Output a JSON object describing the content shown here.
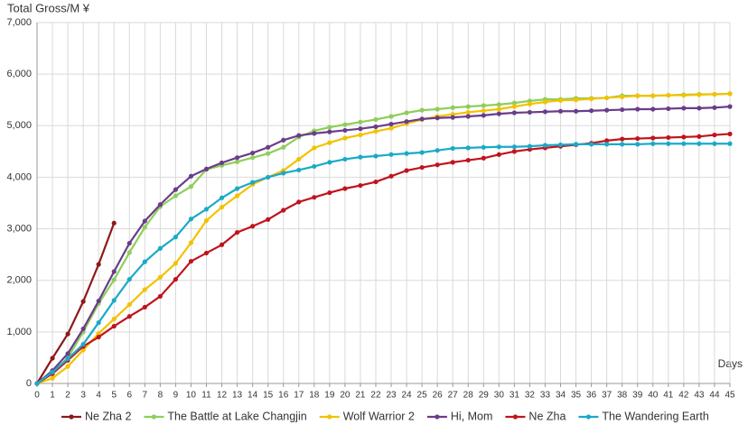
{
  "chart_data": {
    "type": "line",
    "y_label": "Total Gross/M ¥",
    "x_label": "Days",
    "x": [
      0,
      1,
      2,
      3,
      4,
      5,
      6,
      7,
      8,
      9,
      10,
      11,
      12,
      13,
      14,
      15,
      16,
      17,
      18,
      19,
      20,
      21,
      22,
      23,
      24,
      25,
      26,
      27,
      28,
      29,
      30,
      31,
      32,
      33,
      34,
      35,
      36,
      37,
      38,
      39,
      40,
      41,
      42,
      43,
      44,
      45
    ],
    "xlim": [
      0,
      45
    ],
    "xticks": [
      0,
      1,
      2,
      3,
      4,
      5,
      6,
      7,
      8,
      9,
      10,
      11,
      12,
      13,
      14,
      15,
      16,
      17,
      18,
      19,
      20,
      21,
      22,
      23,
      24,
      25,
      26,
      27,
      28,
      29,
      30,
      31,
      32,
      33,
      34,
      35,
      36,
      37,
      38,
      39,
      40,
      41,
      42,
      43,
      44,
      45
    ],
    "ylim": [
      0,
      7000
    ],
    "yticks": [
      0,
      {
        "value": 1000,
        "label": "1,000"
      },
      {
        "value": 2000,
        "label": "2,000"
      },
      {
        "value": 3000,
        "label": "3,000"
      },
      {
        "value": 4000,
        "label": "4,000"
      },
      {
        "value": 5000,
        "label": "5,000"
      },
      {
        "value": 6000,
        "label": "6,000"
      },
      {
        "value": 7000,
        "label": "7,000"
      }
    ],
    "grid": true,
    "legend": "bottom",
    "series": [
      {
        "name": "Ne Zha 2",
        "color": "#8b1a1a",
        "values": [
          0,
          490,
          960,
          1590,
          2310,
          3110,
          null,
          null,
          null,
          null,
          null,
          null,
          null,
          null,
          null,
          null,
          null,
          null,
          null,
          null,
          null,
          null,
          null,
          null,
          null,
          null,
          null,
          null,
          null,
          null,
          null,
          null,
          null,
          null,
          null,
          null,
          null,
          null,
          null,
          null,
          null,
          null,
          null,
          null,
          null,
          null
        ]
      },
      {
        "name": "The Battle at Lake Changjin",
        "color": "#8fce5a",
        "values": [
          0,
          200,
          500,
          1000,
          1550,
          2010,
          2540,
          3030,
          3430,
          3640,
          3820,
          4150,
          4230,
          4300,
          4380,
          4460,
          4580,
          4780,
          4900,
          4970,
          5020,
          5070,
          5120,
          5180,
          5250,
          5300,
          5320,
          5350,
          5370,
          5390,
          5410,
          5440,
          5480,
          5510,
          5510,
          5530,
          5530,
          5540,
          5580,
          5580,
          5580,
          5590,
          5600,
          5610,
          5610,
          5620
        ]
      },
      {
        "name": "Wolf Warrior 2",
        "color": "#f2c200",
        "values": [
          0,
          100,
          330,
          650,
          970,
          1250,
          1530,
          1820,
          2060,
          2330,
          2730,
          3160,
          3420,
          3640,
          3860,
          4000,
          4130,
          4350,
          4570,
          4670,
          4760,
          4820,
          4890,
          4950,
          5040,
          5120,
          5180,
          5220,
          5260,
          5290,
          5320,
          5370,
          5420,
          5460,
          5490,
          5500,
          5520,
          5540,
          5560,
          5580,
          5580,
          5590,
          5590,
          5600,
          5610,
          5620
        ]
      },
      {
        "name": "Hi, Mom",
        "color": "#6a3d8a",
        "values": [
          0,
          250,
          580,
          1060,
          1600,
          2170,
          2720,
          3150,
          3470,
          3760,
          4020,
          4160,
          4280,
          4380,
          4470,
          4580,
          4720,
          4810,
          4850,
          4880,
          4910,
          4940,
          4980,
          5030,
          5080,
          5130,
          5150,
          5160,
          5180,
          5200,
          5230,
          5250,
          5260,
          5270,
          5280,
          5280,
          5290,
          5300,
          5310,
          5320,
          5320,
          5330,
          5340,
          5340,
          5350,
          5370
        ]
      },
      {
        "name": "Ne Zha",
        "color": "#c0141c",
        "values": [
          0,
          190,
          450,
          720,
          900,
          1110,
          1300,
          1480,
          1690,
          2020,
          2370,
          2530,
          2690,
          2930,
          3050,
          3180,
          3360,
          3520,
          3610,
          3700,
          3780,
          3840,
          3910,
          4020,
          4130,
          4190,
          4240,
          4290,
          4330,
          4370,
          4440,
          4500,
          4540,
          4570,
          4600,
          4630,
          4660,
          4710,
          4740,
          4750,
          4760,
          4770,
          4780,
          4790,
          4820,
          4840
        ]
      },
      {
        "name": "The Wandering Earth",
        "color": "#1aaac8",
        "values": [
          0,
          220,
          480,
          760,
          1180,
          1610,
          2020,
          2360,
          2620,
          2840,
          3190,
          3380,
          3600,
          3780,
          3900,
          4000,
          4080,
          4140,
          4210,
          4290,
          4350,
          4390,
          4410,
          4440,
          4460,
          4480,
          4520,
          4560,
          4570,
          4580,
          4590,
          4590,
          4600,
          4620,
          4630,
          4640,
          4640,
          4640,
          4640,
          4640,
          4650,
          4650,
          4650,
          4650,
          4650,
          4650
        ]
      }
    ]
  }
}
